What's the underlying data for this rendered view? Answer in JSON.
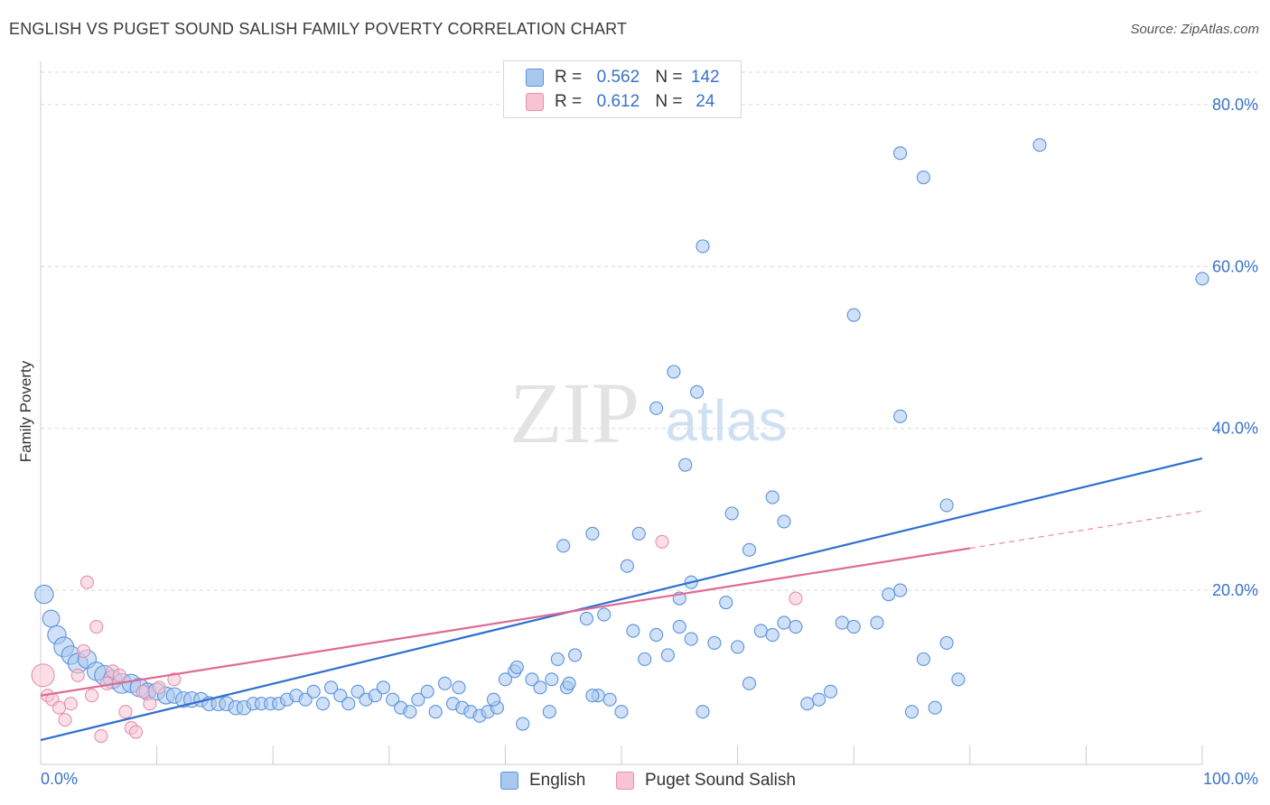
{
  "title": "ENGLISH VS PUGET SOUND SALISH FAMILY POVERTY CORRELATION CHART",
  "source": "Source: ZipAtlas.com",
  "watermark": {
    "zip": "ZIP",
    "atlas": "atlas"
  },
  "colors": {
    "english": "#5b93dc",
    "english_fill": "#a9c8f0",
    "english_line": "#2f6fcf",
    "salish": "#e98fab",
    "salish_fill": "#f7c4d3",
    "salish_line": "#e06a95",
    "axis_text": "#3a73c8",
    "grid": "#d9d9d9"
  },
  "stats": {
    "r_label": "R =",
    "n_label": "N =",
    "english": {
      "r": "0.562",
      "n": "142"
    },
    "salish": {
      "r": "0.612",
      "n": "24"
    }
  },
  "chart_data": {
    "type": "scatter",
    "title": "ENGLISH VS PUGET SOUND SALISH FAMILY POVERTY CORRELATION CHART",
    "xlabel": "",
    "ylabel": "Family Poverty",
    "xlim": [
      0,
      100
    ],
    "ylim": [
      -1.5,
      84
    ],
    "x_tick_labels": [
      "0.0%",
      "100.0%"
    ],
    "y_ticks": [
      20,
      40,
      60,
      80
    ],
    "y_tick_labels": [
      "20.0%",
      "40.0%",
      "60.0%",
      "80.0%"
    ],
    "grid": "horizontal dashed",
    "legend_position": "bottom-center",
    "series": [
      {
        "name": "English",
        "points": [
          [
            0.3,
            19.5,
            13
          ],
          [
            0.9,
            16.5,
            12
          ],
          [
            1.4,
            14.5,
            13
          ],
          [
            2.0,
            13.0,
            14
          ],
          [
            2.6,
            12.0,
            13
          ],
          [
            3.2,
            11.0,
            14
          ],
          [
            4.0,
            11.5,
            13
          ],
          [
            4.8,
            10.0,
            13
          ],
          [
            5.5,
            9.5,
            14
          ],
          [
            6.2,
            9.0,
            13
          ],
          [
            7.0,
            8.5,
            14
          ],
          [
            7.8,
            8.5,
            13
          ],
          [
            8.5,
            8.0,
            13
          ],
          [
            9.2,
            7.5,
            12
          ],
          [
            10.0,
            7.5,
            12
          ],
          [
            10.8,
            7.0,
            12
          ],
          [
            11.5,
            7.0,
            11
          ],
          [
            12.3,
            6.5,
            11
          ],
          [
            13.0,
            6.5,
            11
          ],
          [
            13.8,
            6.5,
            10
          ],
          [
            14.5,
            6.0,
            10
          ],
          [
            15.3,
            6.0,
            10
          ],
          [
            16.0,
            6.0,
            10
          ],
          [
            16.8,
            5.5,
            10
          ],
          [
            17.5,
            5.5,
            10
          ],
          [
            18.3,
            6.0,
            9
          ],
          [
            19.0,
            6.0,
            9
          ],
          [
            19.8,
            6.0,
            9
          ],
          [
            20.5,
            6.0,
            9
          ],
          [
            21.2,
            6.5,
            9
          ],
          [
            22.0,
            7.0,
            9
          ],
          [
            22.8,
            6.5,
            9
          ],
          [
            23.5,
            7.5,
            9
          ],
          [
            24.3,
            6.0,
            9
          ],
          [
            25.0,
            8.0,
            9
          ],
          [
            25.8,
            7.0,
            9
          ],
          [
            26.5,
            6.0,
            9
          ],
          [
            27.3,
            7.5,
            9
          ],
          [
            28.0,
            6.5,
            9
          ],
          [
            28.8,
            7.0,
            9
          ],
          [
            29.5,
            8.0,
            9
          ],
          [
            30.3,
            6.5,
            9
          ],
          [
            31.0,
            5.5,
            9
          ],
          [
            31.8,
            5.0,
            9
          ],
          [
            32.5,
            6.5,
            9
          ],
          [
            33.3,
            7.5,
            9
          ],
          [
            34.0,
            5.0,
            9
          ],
          [
            34.8,
            8.5,
            9
          ],
          [
            35.5,
            6.0,
            9
          ],
          [
            36.3,
            5.5,
            9
          ],
          [
            37.0,
            5.0,
            9
          ],
          [
            37.8,
            4.5,
            9
          ],
          [
            38.5,
            5.0,
            9
          ],
          [
            39.3,
            5.5,
            9
          ],
          [
            40.0,
            9.0,
            9
          ],
          [
            40.8,
            10.0,
            9
          ],
          [
            41.5,
            3.5,
            9
          ],
          [
            42.3,
            9.0,
            9
          ],
          [
            43.0,
            8.0,
            9
          ],
          [
            43.8,
            5.0,
            9
          ],
          [
            44.5,
            11.5,
            9
          ],
          [
            45.3,
            8.0,
            9
          ],
          [
            46.0,
            12.0,
            9
          ],
          [
            47.0,
            16.5,
            9
          ],
          [
            48.0,
            7.0,
            9
          ],
          [
            49.0,
            6.5,
            9
          ],
          [
            50.0,
            5.0,
            9
          ],
          [
            51.0,
            15.0,
            9
          ],
          [
            52.0,
            11.5,
            9
          ],
          [
            53.0,
            14.5,
            9
          ],
          [
            54.0,
            12.0,
            9
          ],
          [
            55.0,
            15.5,
            9
          ],
          [
            56.0,
            14.0,
            9
          ],
          [
            57.0,
            5.0,
            9
          ],
          [
            58.0,
            13.5,
            9
          ],
          [
            59.0,
            18.5,
            9
          ],
          [
            60.0,
            13.0,
            9
          ],
          [
            61.0,
            8.5,
            9
          ],
          [
            62.0,
            15.0,
            9
          ],
          [
            63.0,
            14.5,
            9
          ],
          [
            64.0,
            16.0,
            9
          ],
          [
            65.0,
            15.5,
            9
          ],
          [
            66.0,
            6.0,
            9
          ],
          [
            67.0,
            6.5,
            9
          ],
          [
            68.0,
            7.5,
            9
          ],
          [
            69.0,
            16.0,
            9
          ],
          [
            70.0,
            15.5,
            9
          ],
          [
            72.0,
            16.0,
            9
          ],
          [
            73.0,
            19.5,
            9
          ],
          [
            74.0,
            20.0,
            9
          ],
          [
            75.0,
            5.0,
            9
          ],
          [
            76.0,
            11.5,
            9
          ],
          [
            77.0,
            5.5,
            9
          ],
          [
            78.0,
            13.5,
            9
          ],
          [
            79.0,
            9.0,
            9
          ],
          [
            48.5,
            17.0,
            9
          ],
          [
            45.0,
            25.5,
            9
          ],
          [
            47.5,
            27.0,
            9
          ],
          [
            50.5,
            23.0,
            9
          ],
          [
            51.5,
            27.0,
            9
          ],
          [
            53.0,
            42.5,
            9
          ],
          [
            54.5,
            47.0,
            9
          ],
          [
            55.5,
            35.5,
            9
          ],
          [
            56.5,
            44.5,
            9
          ],
          [
            57.0,
            62.5,
            9
          ],
          [
            59.5,
            29.5,
            9
          ],
          [
            61.0,
            25.0,
            9
          ],
          [
            63.0,
            31.5,
            9
          ],
          [
            64.0,
            28.5,
            9
          ],
          [
            70.0,
            54.0,
            9
          ],
          [
            74.0,
            41.5,
            9
          ],
          [
            74.0,
            74.0,
            9
          ],
          [
            76.0,
            71.0,
            9
          ],
          [
            78.0,
            30.5,
            9
          ],
          [
            86.0,
            75.0,
            9
          ],
          [
            100.0,
            58.5,
            9
          ],
          [
            56.0,
            21.0,
            9
          ],
          [
            55.0,
            19.0,
            9
          ],
          [
            45.5,
            8.5,
            9
          ],
          [
            41.0,
            10.5,
            9
          ],
          [
            47.5,
            7.0,
            9
          ],
          [
            44.0,
            9.0,
            9
          ],
          [
            39.0,
            6.5,
            9
          ],
          [
            36.0,
            8.0,
            9
          ]
        ],
        "trend": {
          "x": [
            0,
            100
          ],
          "y": [
            1.5,
            36.3
          ]
        }
      },
      {
        "name": "Puget Sound Salish",
        "points": [
          [
            0.2,
            9.5,
            16
          ],
          [
            0.6,
            7.0,
            9
          ],
          [
            1.0,
            6.5,
            9
          ],
          [
            1.6,
            5.5,
            9
          ],
          [
            2.1,
            4.0,
            9
          ],
          [
            2.6,
            6.0,
            9
          ],
          [
            3.2,
            9.5,
            9
          ],
          [
            3.7,
            12.5,
            9
          ],
          [
            4.0,
            21.0,
            9
          ],
          [
            4.4,
            7.0,
            9
          ],
          [
            4.8,
            15.5,
            9
          ],
          [
            5.2,
            2.0,
            9
          ],
          [
            5.7,
            8.5,
            9
          ],
          [
            6.2,
            10.0,
            9
          ],
          [
            6.8,
            9.5,
            9
          ],
          [
            7.3,
            5.0,
            9
          ],
          [
            7.8,
            3.0,
            9
          ],
          [
            8.2,
            2.5,
            9
          ],
          [
            8.8,
            7.5,
            9
          ],
          [
            9.4,
            6.0,
            9
          ],
          [
            10.2,
            8.0,
            9
          ],
          [
            11.5,
            9.0,
            9
          ],
          [
            53.5,
            26.0,
            9
          ],
          [
            65.0,
            19.0,
            9
          ]
        ],
        "trend": {
          "x": [
            0,
            80
          ],
          "y": [
            7.0,
            25.2
          ]
        },
        "trend_extension": {
          "x": [
            80,
            100
          ],
          "y": [
            25.2,
            29.8
          ]
        }
      }
    ]
  }
}
